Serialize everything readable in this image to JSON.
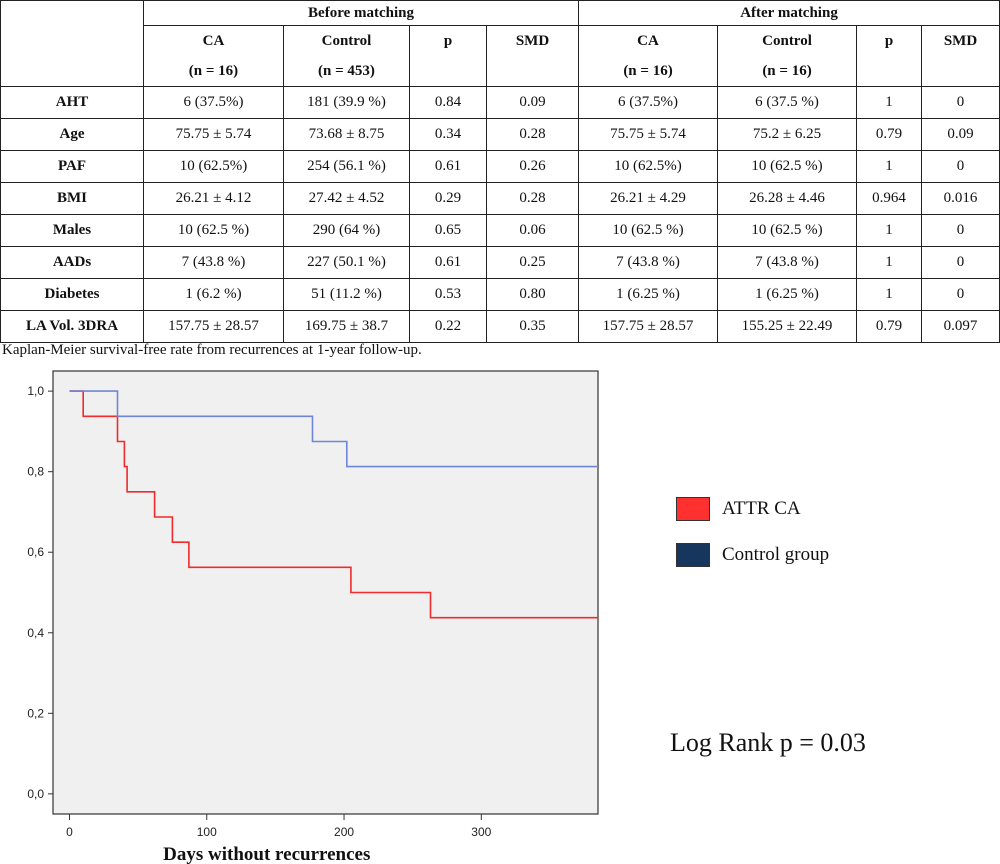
{
  "table": {
    "group_headers": [
      "Before matching",
      "After matching"
    ],
    "columns": [
      {
        "name": "CA",
        "n": "(n = 16)"
      },
      {
        "name": "Control",
        "n": "(n = 453)"
      },
      {
        "name": "p",
        "n": ""
      },
      {
        "name": "SMD",
        "n": ""
      },
      {
        "name": "CA",
        "n": "(n = 16)"
      },
      {
        "name": "Control",
        "n": "(n = 16)"
      },
      {
        "name": "p",
        "n": ""
      },
      {
        "name": "SMD",
        "n": ""
      }
    ],
    "rows": [
      {
        "label": "AHT",
        "cells": [
          "6 (37.5%)",
          "181 (39.9 %)",
          "0.84",
          "0.09",
          "6 (37.5%)",
          "6 (37.5 %)",
          "1",
          "0"
        ]
      },
      {
        "label": "Age",
        "cells": [
          "75.75 ± 5.74",
          "73.68 ± 8.75",
          "0.34",
          "0.28",
          "75.75 ± 5.74",
          "75.2 ± 6.25",
          "0.79",
          "0.09"
        ]
      },
      {
        "label": "PAF",
        "cells": [
          "10 (62.5%)",
          "254 (56.1 %)",
          "0.61",
          "0.26",
          "10 (62.5%)",
          "10 (62.5 %)",
          "1",
          "0"
        ]
      },
      {
        "label": "BMI",
        "cells": [
          "26.21 ± 4.12",
          "27.42 ± 4.52",
          "0.29",
          "0.28",
          "26.21 ± 4.29",
          "26.28 ± 4.46",
          "0.964",
          "0.016"
        ]
      },
      {
        "label": "Males",
        "cells": [
          "10 (62.5 %)",
          "290 (64 %)",
          "0.65",
          "0.06",
          "10 (62.5 %)",
          "10 (62.5 %)",
          "1",
          "0"
        ]
      },
      {
        "label": "AADs",
        "cells": [
          "7 (43.8 %)",
          "227 (50.1 %)",
          "0.61",
          "0.25",
          "7 (43.8 %)",
          "7 (43.8 %)",
          "1",
          "0"
        ]
      },
      {
        "label": "Diabetes",
        "cells": [
          "1 (6.2 %)",
          "51 (11.2 %)",
          "0.53",
          "0.80",
          "1 (6.25 %)",
          "1 (6.25 %)",
          "1",
          "0"
        ]
      },
      {
        "label": "LA Vol. 3DRA",
        "cells": [
          "157.75 ± 28.57",
          "169.75 ± 38.7",
          "0.22",
          "0.35",
          "157.75 ± 28.57",
          "155.25 ± 22.49",
          "0.79",
          "0.097"
        ]
      }
    ]
  },
  "caption": "Kaplan-Meier survival-free rate from recurrences at 1-year follow-up.",
  "chart_data": {
    "type": "line",
    "step": true,
    "xlabel": "Days without recurrences",
    "ylabel": "",
    "xlim": [
      -12,
      385
    ],
    "ylim": [
      -0.05,
      1.05
    ],
    "xticks": [
      0,
      100,
      200,
      300
    ],
    "xtick_labels": [
      "0",
      "100",
      "200",
      "300"
    ],
    "yticks": [
      0.0,
      0.2,
      0.4,
      0.6,
      0.8,
      1.0
    ],
    "ytick_labels": [
      "0,0",
      "0,2",
      "0,4",
      "0,6",
      "0,8",
      "1,0"
    ],
    "grid": false,
    "legend_position": "right",
    "series": [
      {
        "name": "ATTR CA",
        "color": "#ef2b2b",
        "legend_color": "#ff3030",
        "x": [
          0,
          10,
          35,
          40,
          42,
          62,
          75,
          87,
          205,
          263,
          385
        ],
        "y": [
          1.0,
          0.9375,
          0.875,
          0.8125,
          0.75,
          0.6875,
          0.625,
          0.5625,
          0.5,
          0.4375,
          0.4375
        ]
      },
      {
        "name": "Control group",
        "color": "#6f86d6",
        "legend_color": "#17365d",
        "x": [
          0,
          35,
          177,
          202,
          385
        ],
        "y": [
          1.0,
          0.9375,
          0.875,
          0.8125,
          0.8125
        ]
      }
    ],
    "annotation": "Log Rank   p = 0.03"
  }
}
